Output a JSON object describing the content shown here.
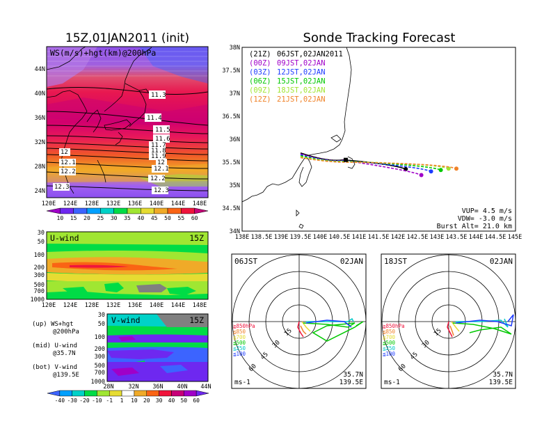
{
  "left_title": "15Z,01JAN2011 (init)",
  "right_title": "Sonde Tracking Forecast",
  "map_panel": {
    "label": "WS(m/s)+hgt(km)@200hPa",
    "lat_labels": [
      "44N",
      "40N",
      "36N",
      "32N",
      "28N",
      "24N"
    ],
    "lon_labels": [
      "120E",
      "124E",
      "128E",
      "132E",
      "136E",
      "140E",
      "144E",
      "148E"
    ],
    "contour_labels": [
      "11.3",
      "11.4",
      "11.5",
      "11.6",
      "11.7",
      "11.8",
      "11.9",
      "12",
      "12",
      "12.1",
      "12.1",
      "12.2",
      "12.2",
      "12.3",
      "12.3"
    ],
    "colorbar_labels": [
      "10",
      "15",
      "20",
      "25",
      "30",
      "35",
      "40",
      "45",
      "50",
      "55",
      "60"
    ],
    "colorbar_colors": [
      "#a000c8",
      "#6e28f0",
      "#3c64ff",
      "#00a0ff",
      "#00d2c8",
      "#00dc46",
      "#a0e632",
      "#e6dc32",
      "#f0aa28",
      "#fa6414",
      "#f0143c",
      "#c80078"
    ]
  },
  "u_panel": {
    "label": "U-wind",
    "time": "15Z",
    "pressure_labels": [
      "30",
      "50",
      "100",
      "200",
      "300",
      "500",
      "700",
      "1000"
    ],
    "lon_labels": [
      "120E",
      "124E",
      "128E",
      "132E",
      "136E",
      "140E",
      "144E",
      "148E"
    ]
  },
  "v_panel": {
    "label": "V-wind",
    "time": "15Z",
    "pressure_labels": [
      "30",
      "50",
      "100",
      "200",
      "300",
      "500",
      "700",
      "1000"
    ],
    "lat_labels": [
      "28N",
      "32N",
      "36N",
      "40N",
      "44N"
    ]
  },
  "legend_notes": [
    "(up) WS+hgt",
    "@200hPa",
    "(mid) U-wind",
    "@35.7N",
    "(bot) V-wind",
    "@139.5E"
  ],
  "bottom_colorbar": {
    "labels": [
      "-40",
      "-30",
      "-20",
      "-10",
      "-1",
      "1",
      "10",
      "20",
      "30",
      "40",
      "50",
      "60"
    ],
    "colors": [
      "#00a0ff",
      "#00d2c8",
      "#00dc46",
      "#a0e632",
      "#e6dc32",
      "#ffffff",
      "#f0aa28",
      "#fa6414",
      "#f0143c",
      "#c80078",
      "#a000c8",
      "#6e28f0"
    ]
  },
  "tracking": {
    "lat_labels": [
      "38N",
      "37.5N",
      "37N",
      "36.5N",
      "36N",
      "35.5N",
      "35N",
      "34.5N",
      "34N"
    ],
    "lon_labels": [
      "138E",
      "138.5E",
      "139E",
      "139.5E",
      "140E",
      "140.5E",
      "141E",
      "141.5E",
      "142E",
      "142.5E",
      "143E",
      "143.5E",
      "144E",
      "144.5E",
      "145E"
    ],
    "legend": [
      {
        "code": "(21Z)",
        "time": "06JST,02JAN2011",
        "color": "#000000"
      },
      {
        "code": "(00Z)",
        "time": "09JST,02JAN",
        "color": "#a000c8"
      },
      {
        "code": "(03Z)",
        "time": "12JST,02JAN",
        "color": "#1e3cff"
      },
      {
        "code": "(06Z)",
        "time": "15JST,02JAN",
        "color": "#00c800"
      },
      {
        "code": "(09Z)",
        "time": "18JST,02JAN",
        "color": "#a0e632"
      },
      {
        "code": "(12Z)",
        "time": "21JST,02JAN",
        "color": "#f08228"
      }
    ],
    "params": [
      "VUP= 4.5 m/s",
      "VDW= -3.0 m/s",
      "Burst Alt= 21.0 km"
    ]
  },
  "hodographs": [
    {
      "time": "06JST",
      "date": "02JAN",
      "ring_labels": [
        "15",
        "30",
        "45",
        "60"
      ],
      "loc": [
        "35.7N",
        "139.5E"
      ],
      "unit": "ms-1"
    },
    {
      "time": "18JST",
      "date": "02JAN",
      "ring_labels": [
        "15",
        "30",
        "45",
        "60"
      ],
      "loc": [
        "35.7N",
        "139.5E"
      ],
      "unit": "ms-1"
    }
  ],
  "hodo_levels": [
    {
      "label": "≧850hPa",
      "color": "#f0143c"
    },
    {
      "label": "≦850",
      "color": "#f08228"
    },
    {
      "label": "≦700",
      "color": "#e6dc32"
    },
    {
      "label": "≦500",
      "color": "#00c800"
    },
    {
      "label": "≦250",
      "color": "#00c8c8"
    },
    {
      "label": "≦100",
      "color": "#1e3cff"
    }
  ]
}
